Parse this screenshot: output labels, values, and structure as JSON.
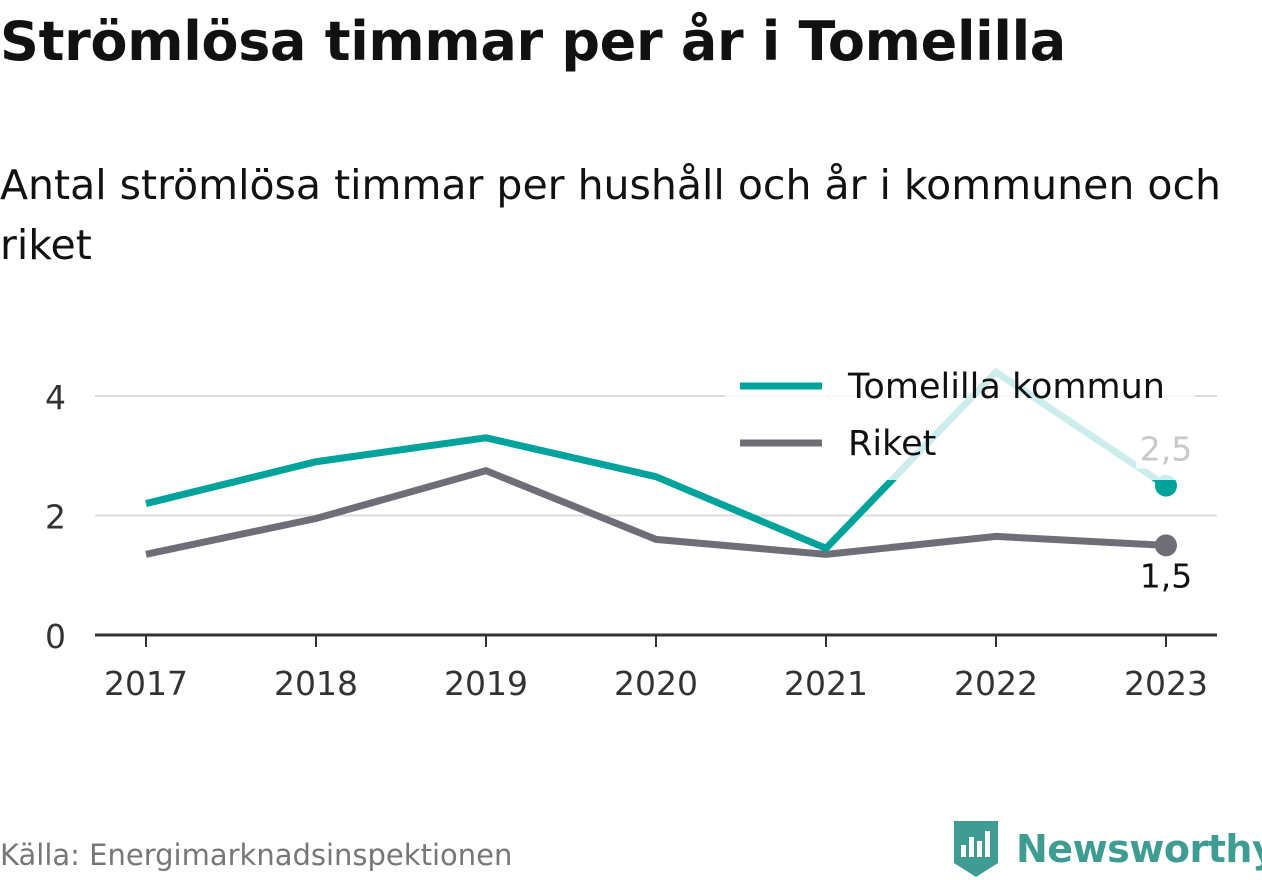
{
  "header": {
    "title": "Strömlösa timmar per år i Tomelilla",
    "subtitle": "Antal strömlösa timmar per hushåll och år i kommunen och riket"
  },
  "footer": {
    "source": "Källa: Energimarknadsinspektionen",
    "brand": "Newsworthy"
  },
  "colors": {
    "tomelilla": "#00a39b",
    "riket": "#6f6e76",
    "grid": "#dcdcdc",
    "axis": "#333333",
    "brand": "#3f9c92"
  },
  "chart_data": {
    "type": "line",
    "x": [
      "2017",
      "2018",
      "2019",
      "2020",
      "2021",
      "2022",
      "2023"
    ],
    "ylim": [
      0,
      4.5
    ],
    "yticks": [
      0,
      2,
      4
    ],
    "grid": true,
    "legend_position": "top-right",
    "series": [
      {
        "name": "Tomelilla kommun",
        "values": [
          2.2,
          2.9,
          3.3,
          2.65,
          1.45,
          4.4,
          2.5
        ],
        "end_label": "2,5"
      },
      {
        "name": "Riket",
        "values": [
          1.35,
          1.95,
          2.75,
          1.6,
          1.35,
          1.65,
          1.5
        ],
        "end_label": "1,5"
      }
    ]
  }
}
